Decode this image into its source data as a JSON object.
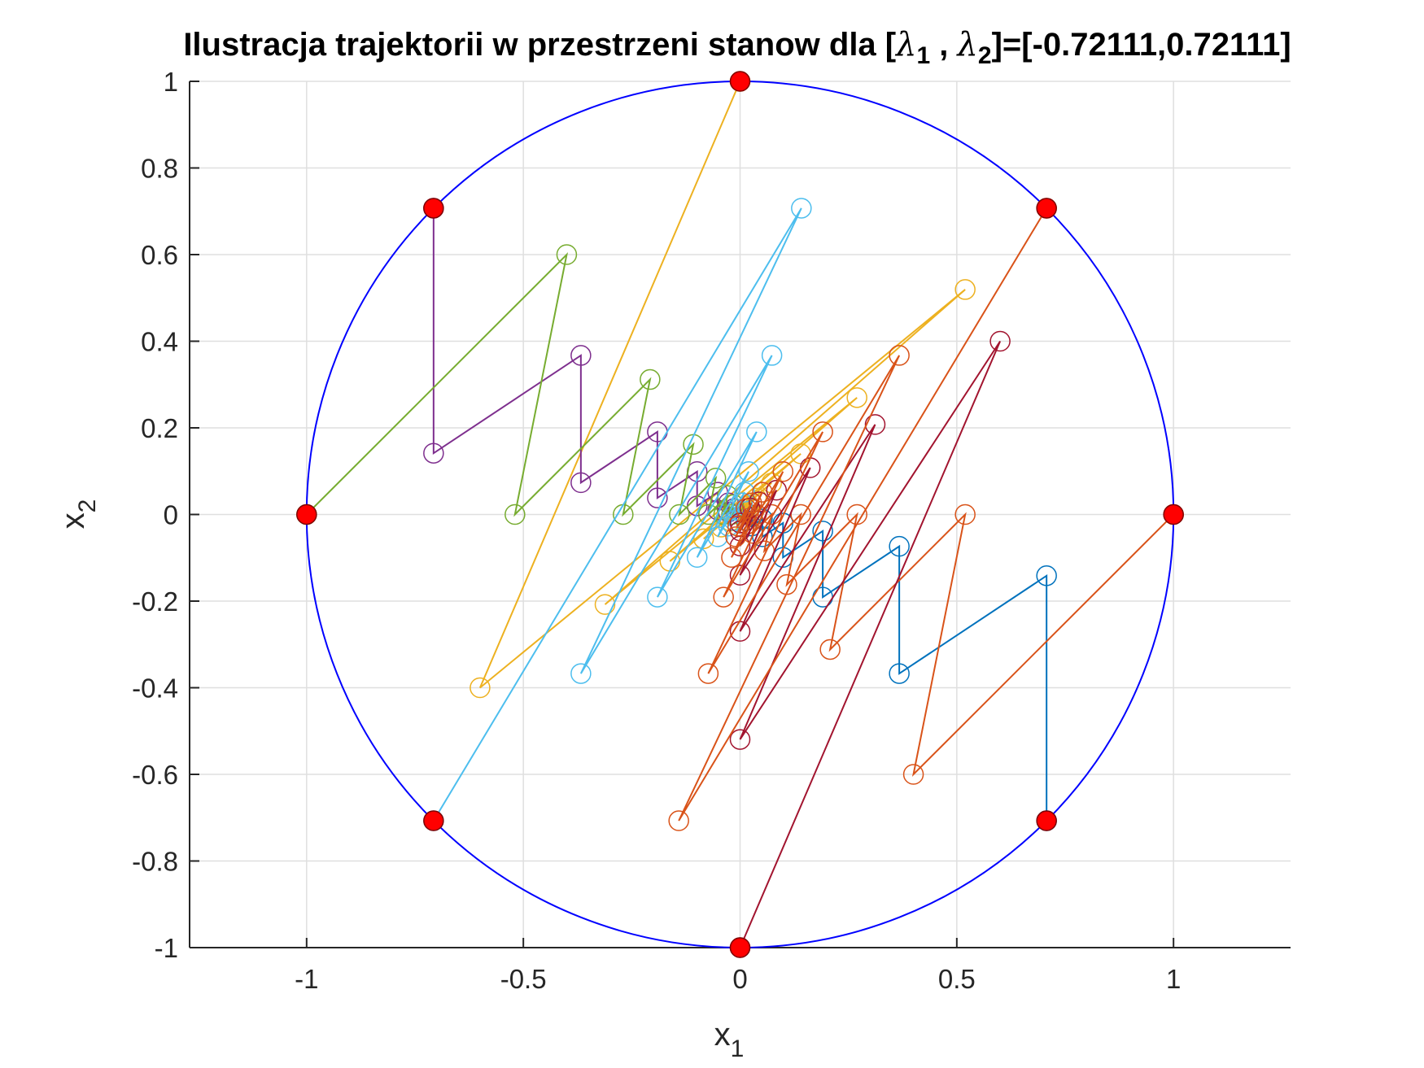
{
  "chart_data": {
    "type": "line",
    "title": {
      "prefix": "Ilustracja trajektorii w przestrzeni stanow dla [",
      "lambda": "λ",
      "sub1": "1",
      "sep": " , ",
      "sub2": "2",
      "suffix": "]=[-0.72111,0.72111]"
    },
    "xlabel": {
      "base": "x",
      "sub": "1"
    },
    "ylabel": {
      "base": "x",
      "sub": "2"
    },
    "xlim": [
      -1.27,
      1.27
    ],
    "ylim": [
      -1,
      1
    ],
    "xticks": [
      -1,
      -0.5,
      0,
      0.5,
      1
    ],
    "xtick_labels": [
      "-1",
      "-0.5",
      "0",
      "0.5",
      "1"
    ],
    "yticks": [
      -1,
      -0.8,
      -0.6,
      -0.4,
      -0.2,
      0,
      0.2,
      0.4,
      0.6,
      0.8,
      1
    ],
    "ytick_labels": [
      "-1",
      "-0.8",
      "-0.6",
      "-0.4",
      "-0.2",
      "0",
      "0.2",
      "0.4",
      "0.6",
      "0.8",
      "1"
    ],
    "grid": true,
    "unit_circle": {
      "center": [
        0,
        0
      ],
      "radius": 1,
      "color": "#0000ff"
    },
    "start_points": {
      "color": "#ff0000",
      "x": [
        1,
        0.70711,
        0,
        -0.70711,
        -1,
        -0.70711,
        0,
        0.70711
      ],
      "y": [
        0,
        0.70711,
        1,
        0.70711,
        0,
        -0.70711,
        -1,
        -0.70711
      ]
    },
    "series": [
      {
        "color": "#0072bd",
        "x": [
          0.70711,
          0.70711,
          0.36727,
          0.36727,
          0.19076,
          0.19076,
          0.09908,
          0.09908,
          0.05146,
          0.05146,
          0.02673,
          0.02673,
          0.01388
        ],
        "y": [
          -0.70711,
          -0.14142,
          -0.36727,
          -0.07345,
          -0.19076,
          -0.03815,
          -0.09908,
          -0.01982,
          -0.05146,
          -0.01029,
          -0.02673,
          -0.00535,
          -0.01388
        ]
      },
      {
        "color": "#d95319",
        "x": [
          1,
          0.4,
          0.51937,
          0.20775,
          0.26976,
          0.1079,
          0.14011,
          0.05604,
          0.07277,
          0.02911,
          0.0378,
          0.01512,
          0.01963
        ],
        "y": [
          0,
          -0.6,
          0,
          -0.31162,
          0,
          -0.16185,
          0,
          -0.08406,
          0,
          -0.04366,
          0,
          -0.02268,
          0
        ]
      },
      {
        "color": "#edb120",
        "x": [
          0,
          -0.6,
          0.51937,
          -0.31162,
          0.26976,
          -0.16185,
          0.14011,
          -0.08406,
          0.07277,
          -0.04366,
          0.0378,
          -0.02268,
          0.01963
        ],
        "y": [
          1,
          -0.4,
          0.51937,
          -0.20775,
          0.26976,
          -0.1079,
          0.14011,
          -0.05604,
          0.07277,
          -0.02911,
          0.0378,
          -0.01512,
          0.01963
        ]
      },
      {
        "color": "#7e2f8e",
        "x": [
          -0.70711,
          -0.70711,
          -0.36727,
          -0.36727,
          -0.19076,
          -0.19076,
          -0.09908,
          -0.09908,
          -0.05146,
          -0.05146,
          -0.02673,
          -0.02673,
          -0.01388
        ],
        "y": [
          0.70711,
          0.14142,
          0.36727,
          0.07345,
          0.19076,
          0.03815,
          0.09908,
          0.01982,
          0.05146,
          0.01029,
          0.02673,
          0.00535,
          0.01388
        ]
      },
      {
        "color": "#77ac30",
        "x": [
          -1,
          -0.4,
          -0.51937,
          -0.20775,
          -0.26976,
          -0.1079,
          -0.14011,
          -0.05604,
          -0.07277,
          -0.02911,
          -0.0378,
          -0.01512,
          -0.01963
        ],
        "y": [
          0,
          0.6,
          0,
          0.31162,
          0,
          0.16185,
          0,
          0.08406,
          0,
          0.04366,
          0,
          0.02268,
          0
        ]
      },
      {
        "color": "#4dbeee",
        "x": [
          -0.70711,
          0.14142,
          -0.36727,
          0.07345,
          -0.19076,
          0.03815,
          -0.09908,
          0.01982,
          -0.05146,
          0.01029,
          -0.02673,
          0.00535,
          -0.01388
        ],
        "y": [
          -0.70711,
          0.70711,
          -0.36727,
          0.36727,
          -0.19076,
          0.19076,
          -0.09908,
          0.09908,
          -0.05146,
          0.05146,
          -0.02673,
          0.02673,
          -0.01388
        ]
      },
      {
        "color": "#a2142f",
        "x": [
          0,
          0.6,
          0,
          0.31162,
          0,
          0.16185,
          0,
          0.08406,
          0,
          0.04366,
          0,
          0.02268,
          0
        ],
        "y": [
          -1,
          0.4,
          -0.51937,
          0.20775,
          -0.26976,
          0.1079,
          -0.14011,
          0.05604,
          -0.07277,
          0.02911,
          -0.0378,
          0.01512,
          -0.01963
        ]
      },
      {
        "color": "#d95319",
        "x": [
          0.70711,
          -0.14142,
          0.36727,
          -0.07345,
          0.19076,
          -0.03815,
          0.09908,
          -0.01982,
          0.05146,
          -0.01029,
          0.02673,
          -0.00535,
          0.01388
        ],
        "y": [
          0.70711,
          -0.70711,
          0.36727,
          -0.36727,
          0.19076,
          -0.19076,
          0.09908,
          -0.09908,
          0.05146,
          -0.05146,
          0.02673,
          -0.02673,
          0.01388
        ]
      }
    ]
  }
}
